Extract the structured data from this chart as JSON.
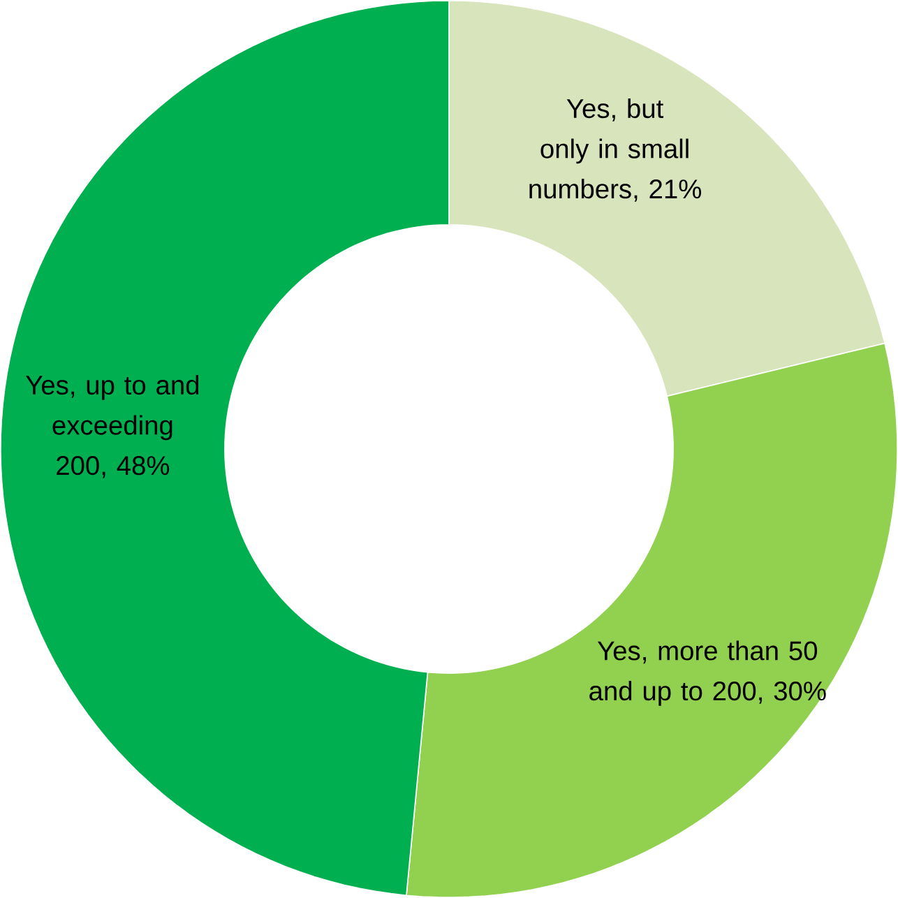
{
  "chart_data": {
    "type": "donut",
    "categories": [
      "Yes, but only in small numbers, 21%",
      "Yes, more than 50 and up to 200, 30%",
      "Yes, up to and exceeding 200, 48%"
    ],
    "values": [
      21,
      30,
      48
    ],
    "colors": [
      "#d8e4bc",
      "#92d050",
      "#00b050"
    ]
  }
}
